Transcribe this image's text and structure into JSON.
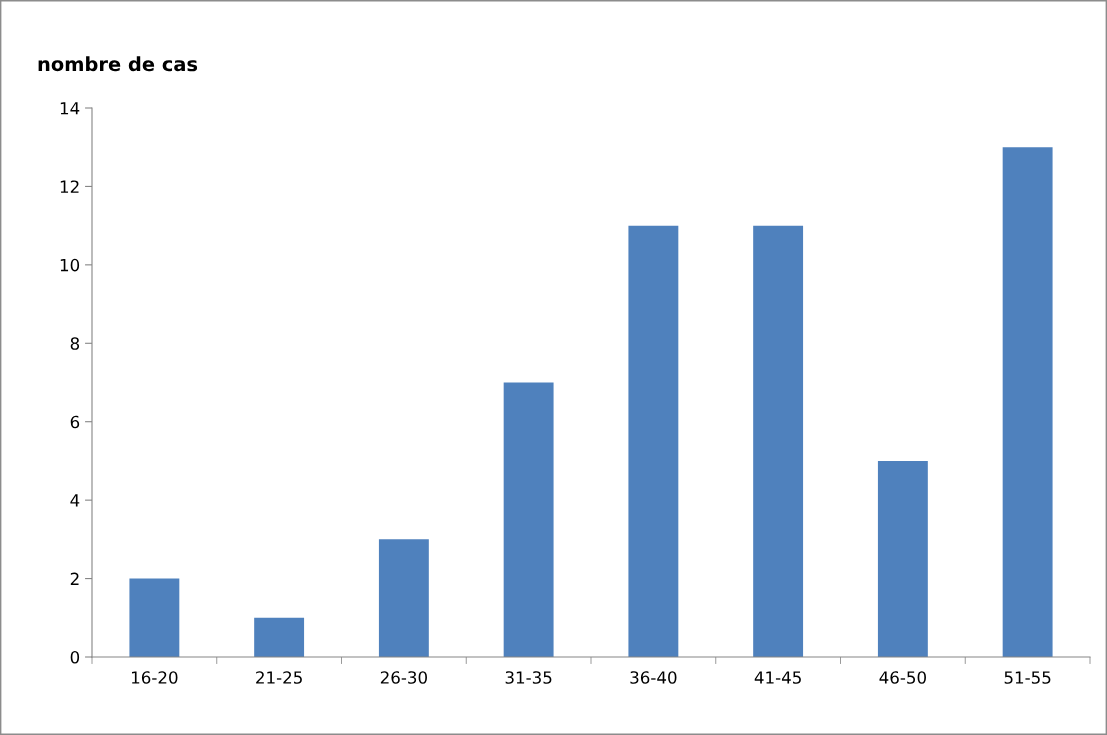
{
  "chart_data": {
    "type": "bar",
    "ylabel": "nombre de cas",
    "categories": [
      "16-20",
      "21-25",
      "26-30",
      "31-35",
      "36-40",
      "41-45",
      "46-50",
      "51-55"
    ],
    "values": [
      2,
      1,
      3,
      7,
      11,
      11,
      5,
      13
    ],
    "color": "#4f81bd",
    "ylim": [
      0,
      14
    ],
    "yticks": [
      0,
      2,
      4,
      6,
      8,
      10,
      12,
      14
    ],
    "grid": false,
    "legend": false
  }
}
